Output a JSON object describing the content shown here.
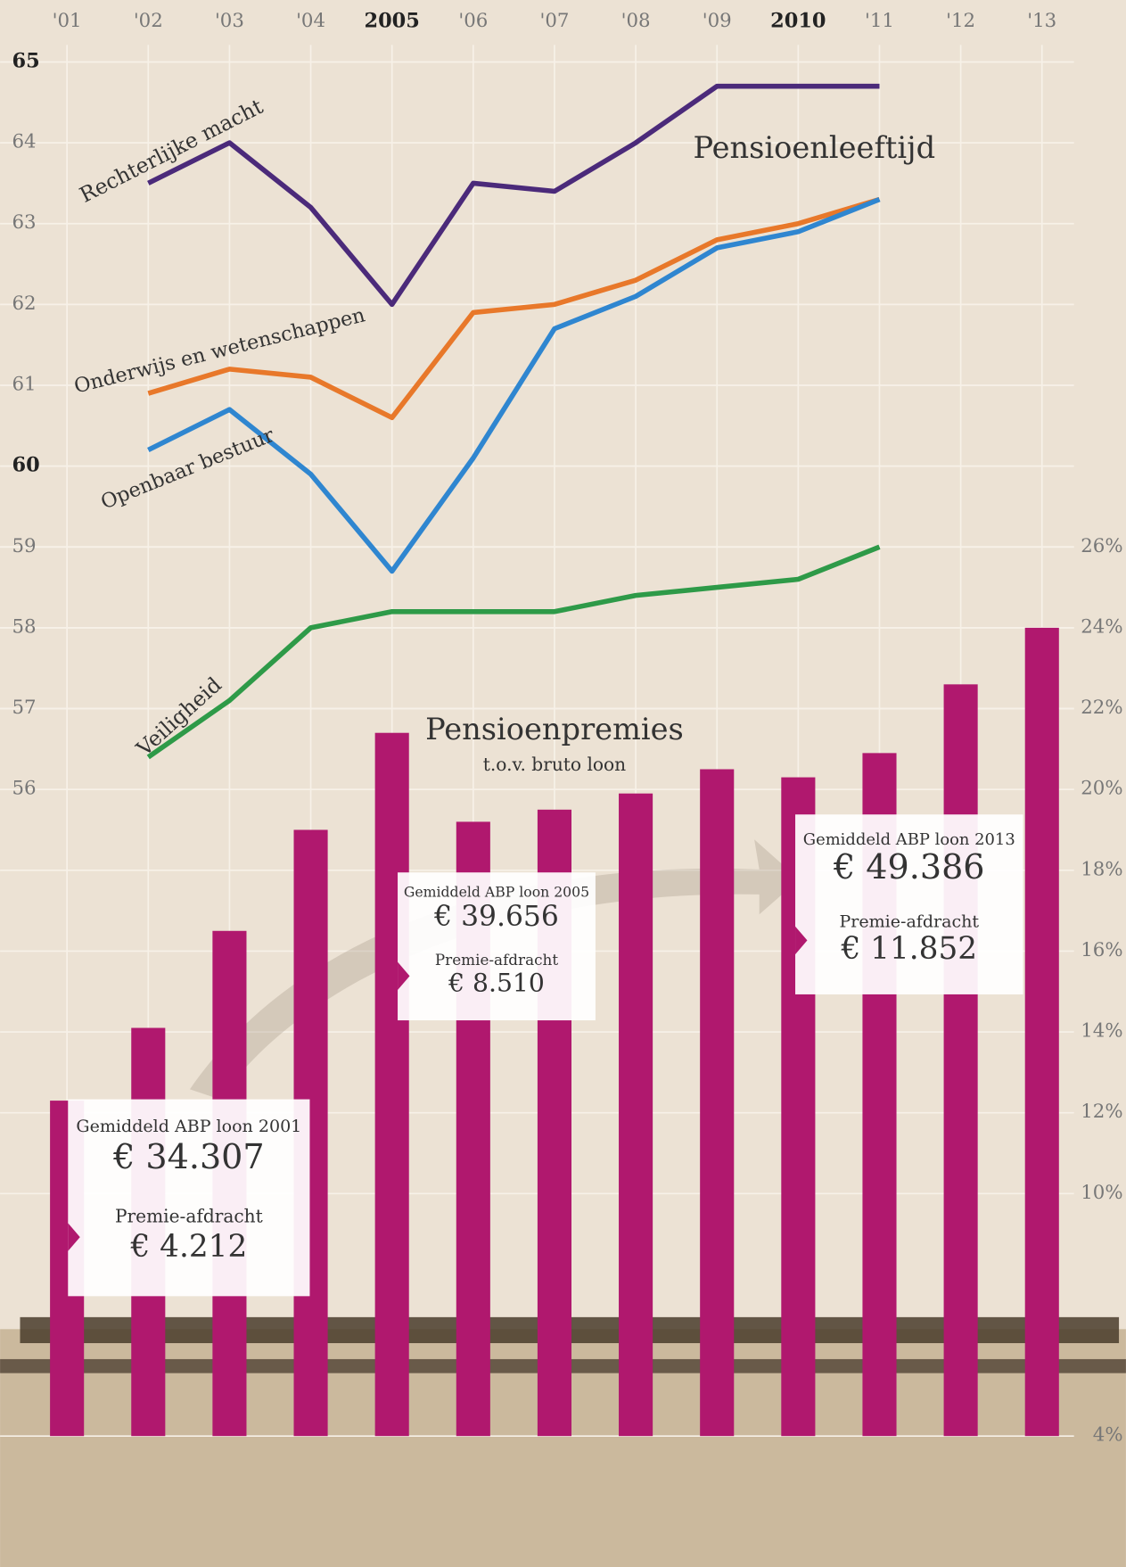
{
  "chart_data": {
    "type": "combo",
    "line_title": "Pensioenleeftijd",
    "bar_title": "Pensioenpremies",
    "bar_subtitle": "t.o.v. bruto loon",
    "categories": [
      "'01",
      "'02",
      "'03",
      "'04",
      "2005",
      "'06",
      "'07",
      "'08",
      "'09",
      "2010",
      "'11",
      "'12",
      "'13"
    ],
    "series": [
      {
        "name": "Rechterlijke macht",
        "type": "line",
        "color": "#4b2a7a",
        "values": [
          null,
          63.5,
          64.0,
          63.2,
          62.0,
          63.5,
          63.4,
          64.0,
          64.7,
          64.7,
          64.7,
          null,
          null
        ]
      },
      {
        "name": "Onderwijs en wetenschappen",
        "type": "line",
        "color": "#e8782a",
        "values": [
          null,
          60.9,
          61.2,
          61.1,
          60.6,
          61.9,
          62.0,
          62.3,
          62.8,
          63.0,
          63.3,
          null,
          null
        ]
      },
      {
        "name": "Openbaar bestuur",
        "type": "line",
        "color": "#2f86d0",
        "values": [
          null,
          60.2,
          60.7,
          59.9,
          58.7,
          60.1,
          61.7,
          62.1,
          62.7,
          62.9,
          63.3,
          null,
          null
        ]
      },
      {
        "name": "Veiligheid",
        "type": "line",
        "color": "#2e9a48",
        "values": [
          null,
          56.4,
          57.1,
          58.0,
          58.2,
          58.2,
          58.2,
          58.4,
          58.5,
          58.6,
          59.0,
          null,
          null
        ]
      },
      {
        "type": "bar",
        "axis": "y2",
        "color": "#b0186e",
        "values": [
          12.3,
          14.1,
          16.5,
          19.0,
          21.4,
          19.2,
          19.5,
          19.9,
          20.5,
          20.3,
          20.9,
          22.6,
          24.0
        ]
      }
    ],
    "ylim": [
      48,
      65
    ],
    "yticks": [
      56,
      57,
      58,
      59,
      60,
      61,
      62,
      63,
      64,
      65
    ],
    "y2lim": [
      4,
      38
    ],
    "y2ticks": [
      {
        "value": 4,
        "label": "4%"
      },
      {
        "value": 10,
        "label": "10%"
      },
      {
        "value": 12,
        "label": "12%"
      },
      {
        "value": 14,
        "label": "14%"
      },
      {
        "value": 16,
        "label": "16%"
      },
      {
        "value": 18,
        "label": "18%"
      },
      {
        "value": 20,
        "label": "20%"
      },
      {
        "value": 22,
        "label": "22%"
      },
      {
        "value": 24,
        "label": "24%"
      },
      {
        "value": 26,
        "label": "26%"
      }
    ],
    "grid": true,
    "callouts": [
      {
        "heading": "Gemiddeld ABP loon 2001",
        "salary": "€ 34.307",
        "premium_label": "Premie-afdracht",
        "premium": "€ 4.212"
      },
      {
        "heading": "Gemiddeld ABP loon 2005",
        "salary": "€ 39.656",
        "premium_label": "Premie-afdracht",
        "premium": "€ 8.510"
      },
      {
        "heading": "Gemiddeld ABP loon 2013",
        "salary": "€ 49.386",
        "premium_label": "Premie-afdracht",
        "premium": "€ 11.852"
      }
    ]
  }
}
